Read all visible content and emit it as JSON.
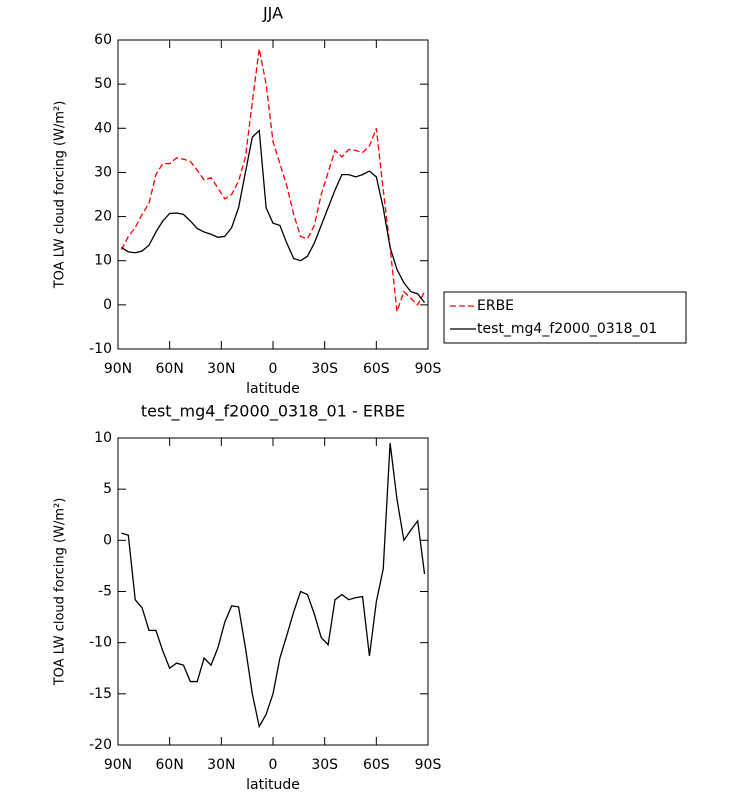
{
  "chart_data": [
    {
      "type": "line",
      "title": "JJA",
      "xlabel": "latitude",
      "ylabel": "TOA LW cloud forcing (W/m²)",
      "x": [
        88,
        84,
        80,
        76,
        72,
        68,
        64,
        60,
        56,
        52,
        48,
        44,
        40,
        36,
        32,
        28,
        24,
        20,
        16,
        12,
        8,
        4,
        0,
        -4,
        -8,
        -12,
        -16,
        -20,
        -24,
        -28,
        -32,
        -36,
        -40,
        -44,
        -48,
        -52,
        -56,
        -60,
        -64,
        -68,
        -72,
        -76,
        -80,
        -84,
        -88
      ],
      "series": [
        {
          "name": "ERBE",
          "color": "#ff0000",
          "linestyle": "dashed",
          "values": [
            12.5,
            15.5,
            17.5,
            20.5,
            23,
            29.5,
            32,
            32,
            33.3,
            33,
            32.5,
            30.5,
            28.3,
            28.8,
            26.5,
            24,
            25,
            28,
            33.5,
            46,
            58,
            50,
            37,
            32,
            27,
            20.5,
            15.5,
            15,
            18,
            25,
            30,
            35,
            33.5,
            35.2,
            35,
            34.5,
            36,
            40,
            26,
            13,
            -1.5,
            3,
            1.5,
            0,
            3
          ]
        },
        {
          "name": "test_mg4_f2000_0318_01",
          "color": "#000000",
          "linestyle": "solid",
          "values": [
            13,
            12,
            11.8,
            12.2,
            13.5,
            16.5,
            19,
            20.7,
            20.8,
            20.5,
            19,
            17.3,
            16.5,
            16,
            15.3,
            15.5,
            17.5,
            22,
            30,
            38,
            39.5,
            22,
            18.5,
            18,
            14,
            10.5,
            10,
            11,
            14,
            18,
            22,
            26,
            29.5,
            29.5,
            29,
            29.5,
            30.3,
            29,
            22,
            13,
            8,
            5,
            3,
            2.5,
            0.5
          ]
        }
      ],
      "xlim": [
        90,
        -90
      ],
      "xticks": [
        {
          "value": 90,
          "label": "90N"
        },
        {
          "value": 60,
          "label": "60N"
        },
        {
          "value": 30,
          "label": "30N"
        },
        0,
        {
          "value": -30,
          "label": "30S"
        },
        {
          "value": -60,
          "label": "60S"
        },
        {
          "value": -90,
          "label": "90S"
        }
      ],
      "ylim": [
        -10,
        60
      ],
      "yticks": [
        -10,
        0,
        10,
        20,
        30,
        40,
        50,
        60
      ],
      "legend": "right"
    },
    {
      "type": "line",
      "title": "test_mg4_f2000_0318_01 - ERBE",
      "xlabel": "latitude",
      "ylabel": "TOA LW cloud forcing (W/m²)",
      "x": [
        88,
        84,
        80,
        76,
        72,
        68,
        64,
        60,
        56,
        52,
        48,
        44,
        40,
        36,
        32,
        28,
        24,
        20,
        16,
        12,
        8,
        4,
        0,
        -4,
        -8,
        -12,
        -16,
        -20,
        -24,
        -28,
        -32,
        -36,
        -40,
        -44,
        -48,
        -52,
        -56,
        -60,
        -64,
        -68,
        -72,
        -76,
        -80,
        -84,
        -88
      ],
      "series": [
        {
          "color": "#000000",
          "linestyle": "solid",
          "values": [
            0.7,
            0.5,
            -5.8,
            -6.6,
            -8.8,
            -8.8,
            -10.8,
            -12.5,
            -12,
            -12.2,
            -13.8,
            -13.8,
            -11.5,
            -12.2,
            -10.5,
            -8,
            -6.4,
            -6.5,
            -10.5,
            -15,
            -18.2,
            -17,
            -15,
            -11.5,
            -9.3,
            -7,
            -5,
            -5.3,
            -7.2,
            -9.5,
            -10.2,
            -5.8,
            -5.3,
            -5.8,
            -5.6,
            -5.5,
            -11.3,
            -6,
            -2.8,
            9.5,
            4,
            0,
            1,
            1.9,
            -3.3
          ]
        }
      ],
      "xlim": [
        90,
        -90
      ],
      "xticks": [
        {
          "value": 90,
          "label": "90N"
        },
        {
          "value": 60,
          "label": "60N"
        },
        {
          "value": 30,
          "label": "30N"
        },
        0,
        {
          "value": -30,
          "label": "30S"
        },
        {
          "value": -60,
          "label": "60S"
        },
        {
          "value": -90,
          "label": "90S"
        }
      ],
      "ylim": [
        -20,
        10
      ],
      "yticks": [
        -20,
        -15,
        -10,
        -5,
        0,
        5,
        10
      ]
    }
  ]
}
